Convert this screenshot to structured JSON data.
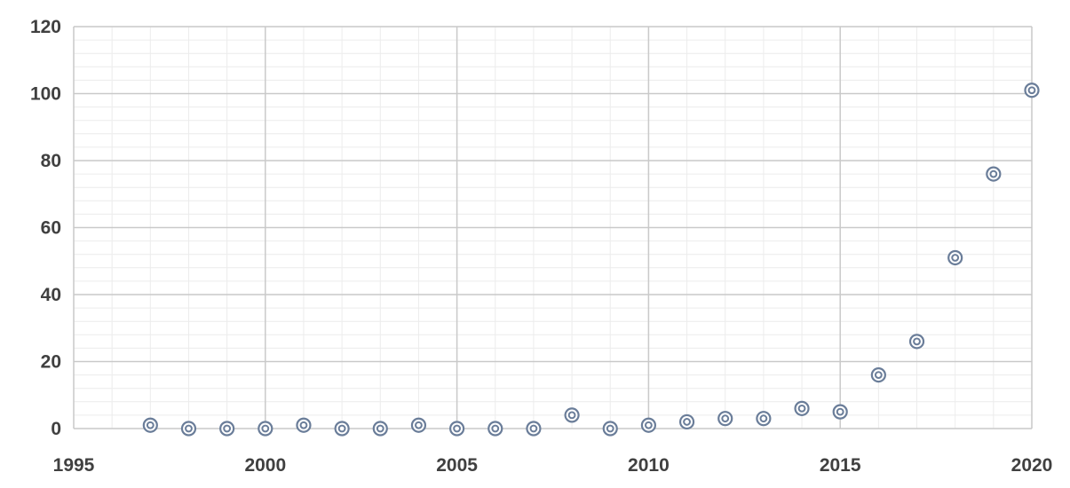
{
  "chart_data": {
    "type": "scatter",
    "title": "",
    "xlabel": "",
    "ylabel": "",
    "xlim": [
      1995,
      2020
    ],
    "ylim": [
      0,
      120
    ],
    "x_ticks": [
      "1995",
      "2000",
      "2005",
      "2010",
      "2015",
      "2020"
    ],
    "y_ticks": [
      "0",
      "20",
      "40",
      "60",
      "80",
      "100",
      "120"
    ],
    "grid": true,
    "legend": "none",
    "marker": "double-circle",
    "colors": {
      "marker": "#6a7d99",
      "tick_text": "#404040",
      "major_grid": "#c9c9c9",
      "minor_grid": "#ececec"
    },
    "series": [
      {
        "x": [
          1997,
          1998,
          1999,
          2000,
          2001,
          2002,
          2003,
          2004,
          2005,
          2006,
          2007,
          2008,
          2009,
          2010,
          2011,
          2012,
          2013,
          2014,
          2015,
          2016,
          2017,
          2018,
          2019,
          2020
        ],
        "y": [
          1,
          0,
          0,
          0,
          1,
          0,
          0,
          1,
          0,
          0,
          0,
          4,
          0,
          1,
          2,
          3,
          3,
          6,
          5,
          16,
          26,
          51,
          76,
          101
        ]
      }
    ]
  }
}
